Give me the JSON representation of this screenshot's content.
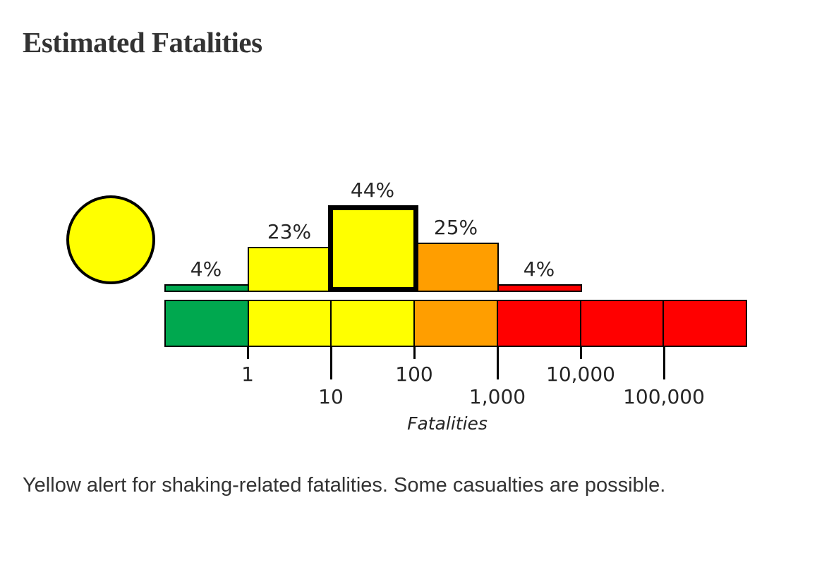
{
  "page": {
    "title": "Estimated Fatalities",
    "summary": "Yellow alert for shaking-related fatalities. Some casualties are possible.",
    "background": "#FFFFFF",
    "text_color": "#333333"
  },
  "alert": {
    "level": "yellow",
    "indicator_color": "#FFFF00",
    "indicator_border_color": "#000000"
  },
  "chart_data": {
    "type": "bar",
    "title": "Estimated Fatalities",
    "xlabel": "Fatalities",
    "x_scale": "log",
    "x_tick_labels": [
      "1",
      "10",
      "100",
      "1,000",
      "10,000",
      "100,000"
    ],
    "grid": false,
    "bins": [
      {
        "range": "<1",
        "pct": 4,
        "label": "4%",
        "color": "#00A84F",
        "highlighted": false
      },
      {
        "range": "1-10",
        "pct": 23,
        "label": "23%",
        "color": "#FFFF00",
        "highlighted": false
      },
      {
        "range": "10-100",
        "pct": 44,
        "label": "44%",
        "color": "#FFFF00",
        "highlighted": true
      },
      {
        "range": "100-1,000",
        "pct": 25,
        "label": "25%",
        "color": "#FF9E00",
        "highlighted": false
      },
      {
        "range": "1,000-10,000",
        "pct": 4,
        "label": "4%",
        "color": "#FF0000",
        "highlighted": false
      }
    ],
    "colorbar_colors": [
      "#00A84F",
      "#FFFF00",
      "#FFFF00",
      "#FF9E00",
      "#FF0000",
      "#FF0000",
      "#FF0000"
    ]
  }
}
